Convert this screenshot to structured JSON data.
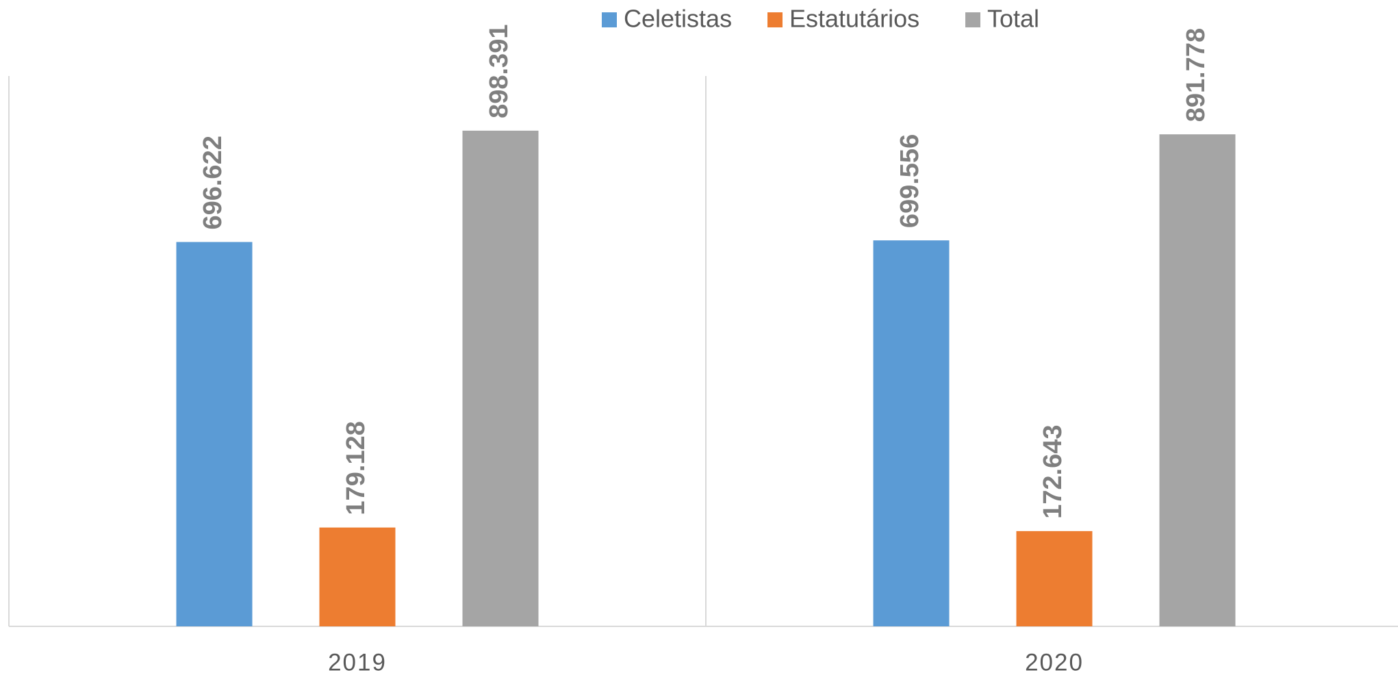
{
  "chart_data": {
    "type": "bar",
    "categories": [
      "2019",
      "2020"
    ],
    "series": [
      {
        "name": "Celetistas",
        "color": "#5b9bd5",
        "values": [
          696622,
          699556
        ],
        "value_labels": [
          "696.622",
          "699.556"
        ]
      },
      {
        "name": "Estatutários",
        "color": "#ed7d31",
        "values": [
          179128,
          172643
        ],
        "value_labels": [
          "179.128",
          "172.643"
        ]
      },
      {
        "name": "Total",
        "color": "#a5a5a5",
        "values": [
          898391,
          891778
        ],
        "value_labels": [
          "898.391",
          "891.778"
        ]
      }
    ],
    "ylim": [
      0,
      1000000
    ],
    "legend": "top"
  }
}
